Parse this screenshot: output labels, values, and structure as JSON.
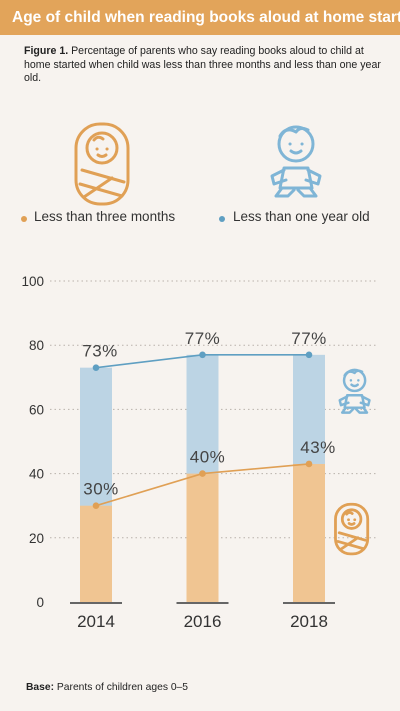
{
  "header": {
    "title": "Age of child when reading books aloud at home started"
  },
  "caption": {
    "figure_label": "Figure 1.",
    "text": "Percentage of parents who say reading books aloud to child at home started when child was less than three months and less than one year old."
  },
  "legend": {
    "series_a": "Less than three months",
    "series_b": "Less than one year old"
  },
  "footer": {
    "base_label": "Base:",
    "base_text": "Parents of children ages 0–5"
  },
  "colors": {
    "header": "#e2a45a",
    "orange": "#e0a055",
    "orange_bar": "#f0c592",
    "blue": "#5f9fc2",
    "blue_bar": "#bcd4e4",
    "baby_orange": "#e0a055",
    "baby_blue": "#7fb5d6"
  },
  "icons": [
    "swaddled-baby-icon",
    "toddler-icon"
  ],
  "chart_data": {
    "type": "bar",
    "categories": [
      "2014",
      "2016",
      "2018"
    ],
    "series": [
      {
        "name": "Less than one year old",
        "values": [
          73,
          77,
          77
        ],
        "labels": [
          "73%",
          "77%",
          "77%"
        ]
      },
      {
        "name": "Less than three months",
        "values": [
          30,
          40,
          43
        ],
        "labels": [
          "30%",
          "40%",
          "43%"
        ]
      }
    ],
    "ylim": [
      0,
      100
    ],
    "yticks": [
      "0",
      "20",
      "40",
      "60",
      "80",
      "100"
    ],
    "grid": true,
    "legend_position": "top"
  }
}
